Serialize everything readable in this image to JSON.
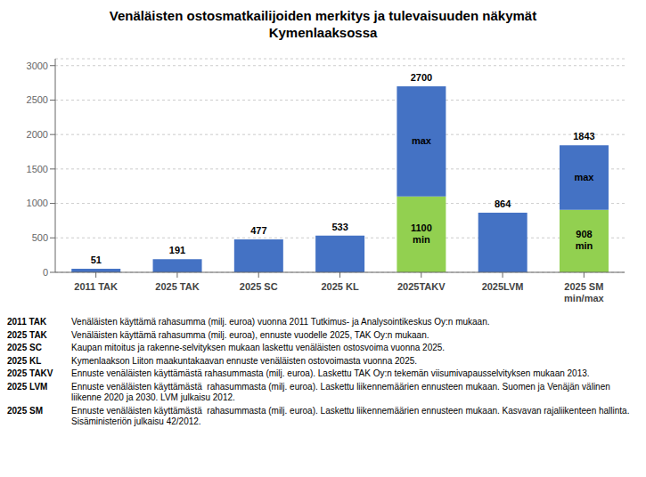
{
  "chart_data": {
    "type": "bar",
    "title": "Venäläisten ostosmatkailijoiden merkitys ja tulevaisuuden näkymät\nKymenlaaksossa",
    "categories": [
      "2011 TAK",
      "2025 TAK",
      "2025 SC",
      "2025 KL",
      "2025TAKV",
      "2025LVM",
      "2025 SM\nmin/max"
    ],
    "stacked": true,
    "series": [
      {
        "color": "#92D050",
        "values": [
          null,
          null,
          null,
          null,
          1100,
          null,
          908
        ],
        "value_labels": [
          null,
          null,
          null,
          null,
          "1100\nmin",
          null,
          "908\nmin"
        ]
      },
      {
        "color": "#4472C4",
        "values": [
          51,
          191,
          477,
          533,
          1600,
          864,
          935
        ],
        "value_labels": [
          null,
          null,
          null,
          null,
          "max",
          null,
          "max"
        ]
      }
    ],
    "totals": [
      51,
      191,
      477,
      533,
      2700,
      864,
      1843
    ],
    "ylim": [
      0,
      3100
    ],
    "yticks": [
      0,
      500,
      1000,
      1500,
      2000,
      2500,
      3000
    ],
    "grid": true,
    "footnotes": [
      {
        "label": "2011 TAK",
        "text": "Venäläisten käyttämä rahasumma (milj. euroa) vuonna 2011 Tutkimus- ja Analysointikeskus Oy:n mukaan."
      },
      {
        "label": "2025 TAK",
        "text": "Venäläisten käyttämä rahasumma (milj. euroa), ennuste vuodelle 2025, TAK Oy:n mukaan."
      },
      {
        "label": "2025 SC",
        "text": "Kaupan mitoitus ja rakenne-selvityksen mukaan laskettu venäläisten ostosvoima vuonna 2025."
      },
      {
        "label": "2025 KL",
        "text": "Kymenlaakson Liiton maakuntakaavan ennuste venäläisten ostovoimasta vuonna 2025."
      },
      {
        "label": "2025 TAKV",
        "text": "Ennuste venäläisten käyttämästä rahasummasta (milj. euroa). Laskettu TAK Oy:n tekemän viisumivapausselvityksen mukaan 2013."
      },
      {
        "label": "2025 LVM",
        "text": "Ennuste venäläisten käyttämästä  rahasummasta (milj. euroa). Laskettu liikennemäärien ennusteen mukaan. Suomen ja Venäjän välinen liikenne 2020 ja 2030. LVM julkaisu 2012."
      },
      {
        "label": "2025 SM",
        "text": "Ennuste venäläisten käyttämästä  rahasummasta (milj. euroa). Laskettu liikennemäärien ennusteen mukaan. Kasvavan rajaliikenteen hallinta. Sisäministeriön julkaisu 42/2012."
      }
    ]
  }
}
